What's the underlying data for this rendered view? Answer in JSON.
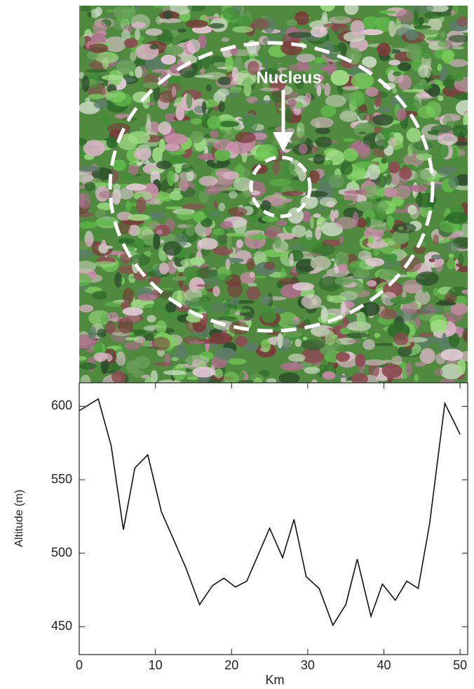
{
  "image_annotation": "Nucleus",
  "chart_data": {
    "type": "line",
    "x_label": "Km",
    "y_label": "Altitude (m)",
    "x": [
      0,
      2.5,
      4.2,
      5.8,
      7.3,
      9,
      10.8,
      12.5,
      14,
      15.8,
      17.5,
      19,
      20.5,
      22,
      25,
      26.7,
      28.2,
      29.8,
      31.5,
      33.3,
      35,
      36.5,
      38.3,
      39.8,
      41.5,
      43,
      44.5,
      46,
      48,
      50
    ],
    "series": [
      {
        "color": "#111111",
        "values": [
          597,
          605,
          573,
          516,
          558,
          567,
          528,
          508,
          490,
          465,
          478,
          483,
          477,
          481,
          517,
          497,
          523,
          484,
          476,
          451,
          465,
          496,
          457,
          479,
          468,
          481,
          476,
          520,
          602,
          581
        ]
      }
    ],
    "xlim": [
      0,
      51
    ],
    "ylim": [
      431,
      616
    ],
    "xticks": [
      0,
      10,
      20,
      30,
      40,
      50
    ],
    "yticks": [
      450,
      500,
      550,
      600
    ]
  }
}
